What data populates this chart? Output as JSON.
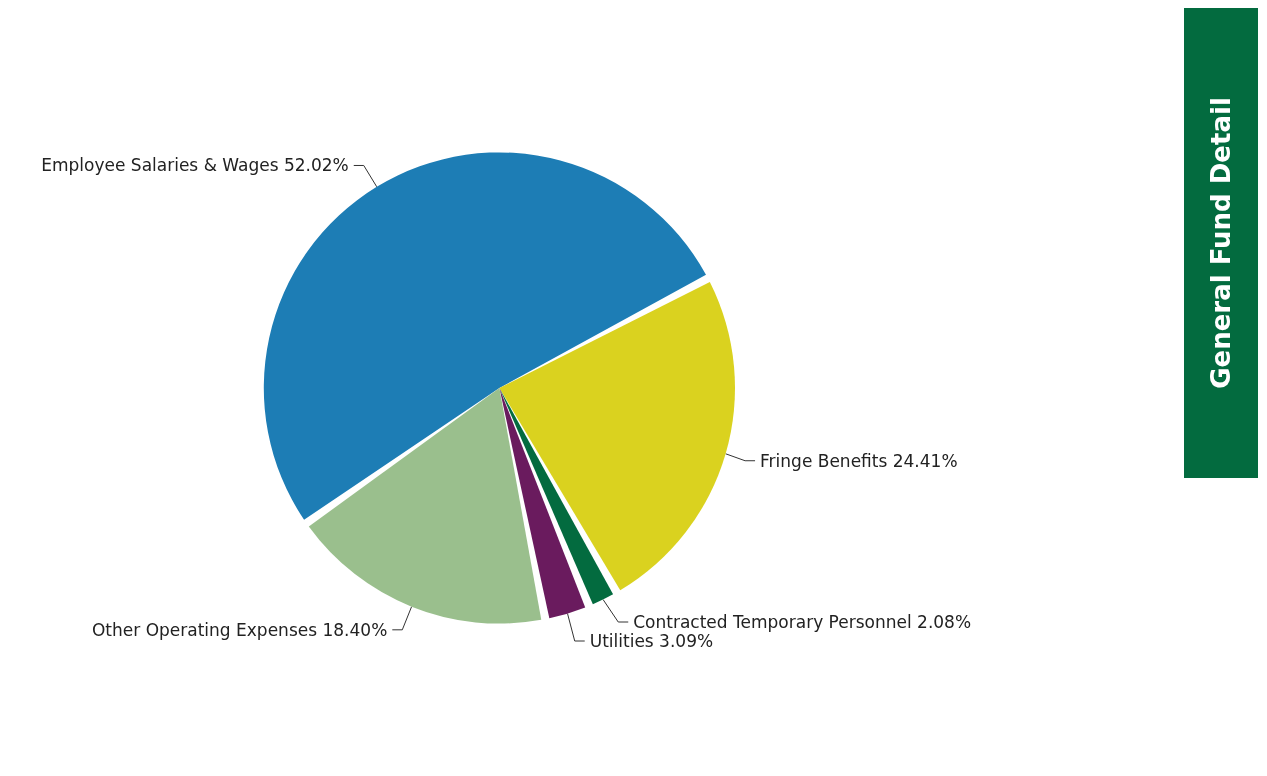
{
  "chart_data": {
    "type": "pie",
    "title": "General Fund Detail",
    "categories": [
      "Employee Salaries & Wages",
      "Fringe Benefits",
      "Contracted Temporary Personnel",
      "Utilities",
      "Other Operating Expenses"
    ],
    "values": [
      52.02,
      24.41,
      2.08,
      3.09,
      18.4
    ],
    "value_labels": [
      "52.02%",
      "24.41%",
      "2.08%",
      "3.09%",
      "18.40%"
    ],
    "colors": [
      "#1d7db5",
      "#dad21f",
      "#036b3f",
      "#6a1b5e",
      "#9abf8d"
    ],
    "legend": false
  }
}
